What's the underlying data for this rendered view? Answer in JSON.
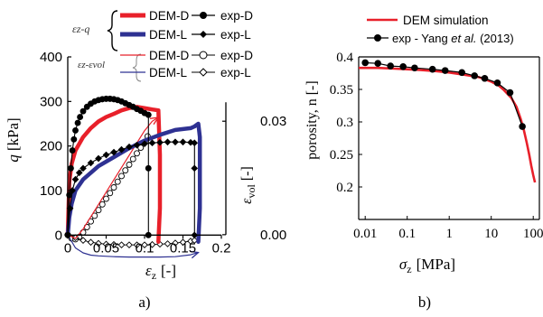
{
  "colors": {
    "red": "#e8202a",
    "blue": "#2e3192",
    "black": "#000000",
    "gray": "#333333"
  },
  "chart_data": [
    {
      "id": "a",
      "panel_label": "a)",
      "type": "line",
      "xlabel": "ε",
      "xlabel_sub": "z",
      "xlabel_unit": "[-]",
      "ylabel": "q",
      "ylabel_unit": "[kPa]",
      "y2label": "ε",
      "y2label_sub": "vol",
      "y2label_unit": "[-]",
      "xlim": [
        0,
        0.2
      ],
      "ylim": [
        -50,
        400
      ],
      "y2lim": [
        -0.006,
        0.047
      ],
      "x_ticks": [
        "0",
        "0.05",
        "0.1",
        "0.15",
        "0.2"
      ],
      "x_tick_values": [
        0,
        0.05,
        0.1,
        0.15,
        0.2
      ],
      "y_ticks": [
        "0",
        "100",
        "200",
        "300",
        "400"
      ],
      "y_tick_values": [
        0,
        100,
        200,
        300,
        400
      ],
      "y2_ticks": [
        "0.00",
        "0.03"
      ],
      "y2_tick_values": [
        0,
        0.03
      ],
      "legend": {
        "group1_label": "εz-q",
        "group2_label": "εz-εvol",
        "group1": [
          {
            "label": "DEM-D",
            "kind": "line",
            "color": "#e8202a",
            "width": "thick"
          },
          {
            "label": "exp-D",
            "kind": "marker",
            "marker": "filled-circle"
          },
          {
            "label": "DEM-L",
            "kind": "line",
            "color": "#2e3192",
            "width": "thick"
          },
          {
            "label": "exp-L",
            "kind": "marker",
            "marker": "filled-diamond"
          }
        ],
        "group2": [
          {
            "label": "DEM-D",
            "kind": "line",
            "color": "#e8202a",
            "width": "thin"
          },
          {
            "label": "exp-D",
            "kind": "marker",
            "marker": "open-circle"
          },
          {
            "label": "DEM-L",
            "kind": "line",
            "color": "#2e3192",
            "width": "thin"
          },
          {
            "label": "exp-L",
            "kind": "marker",
            "marker": "open-diamond"
          }
        ]
      },
      "series": [
        {
          "name": "DEM-D",
          "axis": "q",
          "style": "thick-red",
          "x": [
            0,
            0.002,
            0.005,
            0.01,
            0.02,
            0.03,
            0.04,
            0.05,
            0.06,
            0.07,
            0.08,
            0.09,
            0.1,
            0.11,
            0.118,
            0.12,
            0.12,
            0.118
          ],
          "y": [
            0,
            120,
            160,
            190,
            220,
            240,
            255,
            265,
            272,
            280,
            285,
            288,
            285,
            282,
            280,
            180,
            60,
            -15
          ]
        },
        {
          "name": "DEM-L",
          "axis": "q",
          "style": "thick-blue",
          "x": [
            0,
            0.002,
            0.005,
            0.01,
            0.02,
            0.04,
            0.06,
            0.08,
            0.1,
            0.12,
            0.14,
            0.16,
            0.165,
            0.17,
            0.172,
            0.172,
            0.17
          ],
          "y": [
            0,
            40,
            70,
            100,
            125,
            155,
            175,
            195,
            212,
            225,
            236,
            240,
            244,
            250,
            220,
            60,
            -15
          ]
        },
        {
          "name": "exp-D",
          "axis": "q",
          "style": "marker-filled-circle",
          "x": [
            0,
            0.002,
            0.004,
            0.006,
            0.008,
            0.01,
            0.013,
            0.016,
            0.02,
            0.025,
            0.03,
            0.035,
            0.04,
            0.045,
            0.05,
            0.055,
            0.06,
            0.065,
            0.07,
            0.075,
            0.08,
            0.085,
            0.09,
            0.095,
            0.1,
            0.105,
            0.105,
            0.105
          ],
          "y": [
            0,
            90,
            150,
            190,
            215,
            235,
            252,
            265,
            278,
            288,
            295,
            300,
            303,
            305,
            306,
            306,
            305,
            303,
            300,
            296,
            292,
            288,
            283,
            279,
            274,
            270,
            150,
            0
          ]
        },
        {
          "name": "exp-L",
          "axis": "q",
          "style": "marker-filled-diamond",
          "x": [
            0,
            0.003,
            0.006,
            0.01,
            0.015,
            0.02,
            0.03,
            0.04,
            0.05,
            0.06,
            0.07,
            0.08,
            0.09,
            0.1,
            0.11,
            0.12,
            0.13,
            0.14,
            0.15,
            0.16,
            0.165,
            0.165,
            0.165
          ],
          "y": [
            0,
            60,
            100,
            125,
            140,
            150,
            162,
            172,
            180,
            186,
            192,
            198,
            202,
            205,
            207,
            208,
            209,
            209,
            209,
            208,
            207,
            150,
            0
          ]
        },
        {
          "name": "DEM-D",
          "axis": "vol",
          "style": "thin-red",
          "x": [
            0,
            0.01,
            0.02,
            0.04,
            0.06,
            0.08,
            0.1,
            0.11,
            0.118
          ],
          "y": [
            0,
            -0.001,
            0.0015,
            0.008,
            0.0145,
            0.021,
            0.0275,
            0.03,
            0.031
          ]
        },
        {
          "name": "DEM-L",
          "axis": "vol",
          "style": "thin-blue",
          "x": [
            0,
            0.01,
            0.02,
            0.03,
            0.04,
            0.06,
            0.08,
            0.1,
            0.12,
            0.14,
            0.16,
            0.17
          ],
          "y": [
            0,
            -0.0035,
            -0.0048,
            -0.0054,
            -0.0056,
            -0.0058,
            -0.0059,
            -0.0059,
            -0.0059,
            -0.0058,
            -0.0053,
            -0.0047
          ]
        },
        {
          "name": "exp-D",
          "axis": "vol",
          "style": "marker-open-circle",
          "x": [
            0,
            0.005,
            0.01,
            0.015,
            0.02,
            0.025,
            0.03,
            0.035,
            0.04,
            0.045,
            0.05,
            0.055,
            0.06,
            0.065,
            0.07,
            0.075,
            0.08,
            0.085,
            0.09,
            0.095,
            0.1,
            0.104
          ],
          "y": [
            0,
            -0.001,
            -0.0012,
            -0.0006,
            0.0006,
            0.002,
            0.0035,
            0.005,
            0.0065,
            0.008,
            0.0095,
            0.011,
            0.0125,
            0.014,
            0.0155,
            0.017,
            0.0185,
            0.02,
            0.0215,
            0.023,
            0.0245,
            0.026
          ]
        },
        {
          "name": "exp-L",
          "axis": "vol",
          "style": "marker-open-diamond",
          "x": [
            0,
            0.01,
            0.02,
            0.03,
            0.04,
            0.05,
            0.06,
            0.07,
            0.08,
            0.09,
            0.1,
            0.11,
            0.12,
            0.13,
            0.14,
            0.15,
            0.16,
            0.165
          ],
          "y": [
            0,
            -0.0008,
            -0.0015,
            -0.002,
            -0.0023,
            -0.0025,
            -0.0026,
            -0.0027,
            -0.0027,
            -0.0027,
            -0.0027,
            -0.0026,
            -0.0025,
            -0.0024,
            -0.0022,
            -0.002,
            -0.0017,
            -0.0015
          ]
        }
      ]
    },
    {
      "id": "b",
      "panel_label": "b)",
      "type": "line",
      "xscale": "log",
      "xlabel": "σ",
      "xlabel_sub": "z",
      "xlabel_unit": "[MPa]",
      "ylabel": "porosity, n [-]",
      "xlim": [
        0.007,
        140
      ],
      "ylim": [
        0.15,
        0.4
      ],
      "x_ticks": [
        "0.01",
        "0.1",
        "1",
        "10",
        "100"
      ],
      "x_tick_values": [
        0.01,
        0.1,
        1,
        10,
        100
      ],
      "y_ticks": [
        "0.2",
        "0.25",
        "0.3",
        "0.35",
        "0.4"
      ],
      "y_tick_values": [
        0.2,
        0.25,
        0.3,
        0.35,
        0.4
      ],
      "legend": {
        "dem_label": "DEM simulation",
        "exp_prefix": "exp - Yang ",
        "exp_italic": "et al.",
        "exp_suffix": " (2013)"
      },
      "series": [
        {
          "name": "DEM simulation",
          "style": "line-red",
          "x": [
            0.007,
            0.01,
            0.02,
            0.05,
            0.1,
            0.2,
            0.5,
            1,
            2,
            5,
            10,
            15,
            20,
            30,
            40,
            50,
            60,
            70,
            80,
            90,
            100,
            110
          ],
          "y": [
            0.383,
            0.383,
            0.383,
            0.382,
            0.381,
            0.38,
            0.378,
            0.376,
            0.373,
            0.369,
            0.362,
            0.356,
            0.349,
            0.337,
            0.323,
            0.305,
            0.287,
            0.268,
            0.25,
            0.232,
            0.218,
            0.207
          ]
        },
        {
          "name": "exp - Yang et al. (2013)",
          "style": "marker-line-black",
          "x": [
            0.01,
            0.02,
            0.04,
            0.08,
            0.15,
            0.4,
            0.8,
            2,
            4,
            7,
            14,
            28,
            55
          ],
          "y": [
            0.391,
            0.39,
            0.386,
            0.385,
            0.383,
            0.381,
            0.379,
            0.376,
            0.371,
            0.367,
            0.36,
            0.345,
            0.293
          ]
        }
      ]
    }
  ]
}
